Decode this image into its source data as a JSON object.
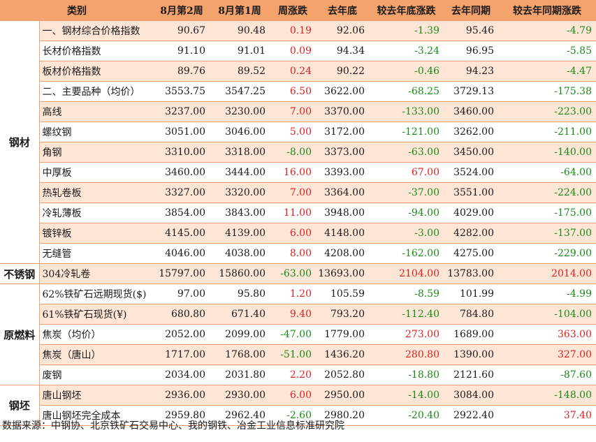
{
  "header": {
    "category": "类别",
    "week2": "8月第2周",
    "week1": "8月第1周",
    "weekly_change": "周涨跌",
    "last_year_end": "去年底",
    "vs_year_end": "较去年底涨跌",
    "last_year_same": "去年同期",
    "vs_last_year_same": "较去年同期涨跌"
  },
  "colors": {
    "header_bg": "#f4a36c",
    "odd_row": "#fde6d6",
    "rise": "#e02020",
    "fall": "#1a8a1a"
  },
  "groups": [
    {
      "category": "钢材",
      "rows": [
        [
          "一、钢材综合价格指数",
          "90.67",
          "90.48",
          "0.19",
          "92.06",
          "-1.39",
          "95.46",
          "-4.79"
        ],
        [
          "长材价格指数",
          "91.10",
          "91.01",
          "0.09",
          "94.34",
          "-3.24",
          "96.95",
          "-5.85"
        ],
        [
          "板材价格指数",
          "89.76",
          "89.52",
          "0.24",
          "90.22",
          "-0.46",
          "94.23",
          "-4.47"
        ],
        [
          "二、主要品种（均价）",
          "3553.75",
          "3547.25",
          "6.50",
          "3622.00",
          "-68.25",
          "3729.13",
          "-175.38"
        ],
        [
          "高线",
          "3237.00",
          "3230.00",
          "7.00",
          "3370.00",
          "-133.00",
          "3460.00",
          "-223.00"
        ],
        [
          "螺纹钢",
          "3051.00",
          "3046.00",
          "5.00",
          "3172.00",
          "-121.00",
          "3262.00",
          "-211.00"
        ],
        [
          "角钢",
          "3310.00",
          "3318.00",
          "-8.00",
          "3373.00",
          "-63.00",
          "3450.00",
          "-140.00"
        ],
        [
          "中厚板",
          "3460.00",
          "3444.00",
          "16.00",
          "3393.00",
          "67.00",
          "3524.00",
          "-64.00"
        ],
        [
          "热轧卷板",
          "3327.00",
          "3320.00",
          "7.00",
          "3364.00",
          "-37.00",
          "3551.00",
          "-224.00"
        ],
        [
          "冷轧薄板",
          "3854.00",
          "3843.00",
          "11.00",
          "3948.00",
          "-94.00",
          "4029.00",
          "-175.00"
        ],
        [
          "镀锌板",
          "4145.00",
          "4139.00",
          "6.00",
          "4148.00",
          "-3.00",
          "4282.00",
          "-137.00"
        ],
        [
          "无缝管",
          "4046.00",
          "4038.00",
          "8.00",
          "4208.00",
          "-162.00",
          "4275.00",
          "-229.00"
        ]
      ]
    },
    {
      "category": "不锈钢",
      "rows": [
        [
          "304冷轧卷",
          "15797.00",
          "15860.00",
          "-63.00",
          "13693.00",
          "2104.00",
          "13783.00",
          "2014.00"
        ]
      ]
    },
    {
      "category": "原燃料",
      "rows": [
        [
          "62%铁矿石远期现货($)",
          "97.00",
          "95.80",
          "1.20",
          "105.59",
          "-8.59",
          "101.99",
          "-4.99"
        ],
        [
          "61%铁矿石现货(¥)",
          "680.80",
          "671.40",
          "9.40",
          "793.20",
          "-112.40",
          "784.80",
          "-104.00"
        ],
        [
          "焦炭（均价）",
          "2052.00",
          "2099.00",
          "-47.00",
          "1779.00",
          "273.00",
          "1689.00",
          "363.00"
        ],
        [
          "焦炭（唐山）",
          "1717.00",
          "1768.00",
          "-51.00",
          "1436.20",
          "280.80",
          "1390.00",
          "327.00"
        ],
        [
          "废钢",
          "2034.00",
          "2031.80",
          "2.20",
          "2052.80",
          "-18.80",
          "2121.60",
          "-87.60"
        ]
      ]
    },
    {
      "category": "钢坯",
      "rows": [
        [
          "唐山钢坯",
          "2936.00",
          "2930.00",
          "6.00",
          "2950.00",
          "-14.00",
          "3084.00",
          "-148.00"
        ],
        [
          "唐山钢坯完全成本",
          "2959.80",
          "2962.40",
          "-2.60",
          "2980.20",
          "-20.40",
          "2922.40",
          "37.40"
        ]
      ]
    }
  ],
  "source": "数据来源：中钢协、北京铁矿石交易中心、我的钢铁、冶金工业信息标准研究院"
}
